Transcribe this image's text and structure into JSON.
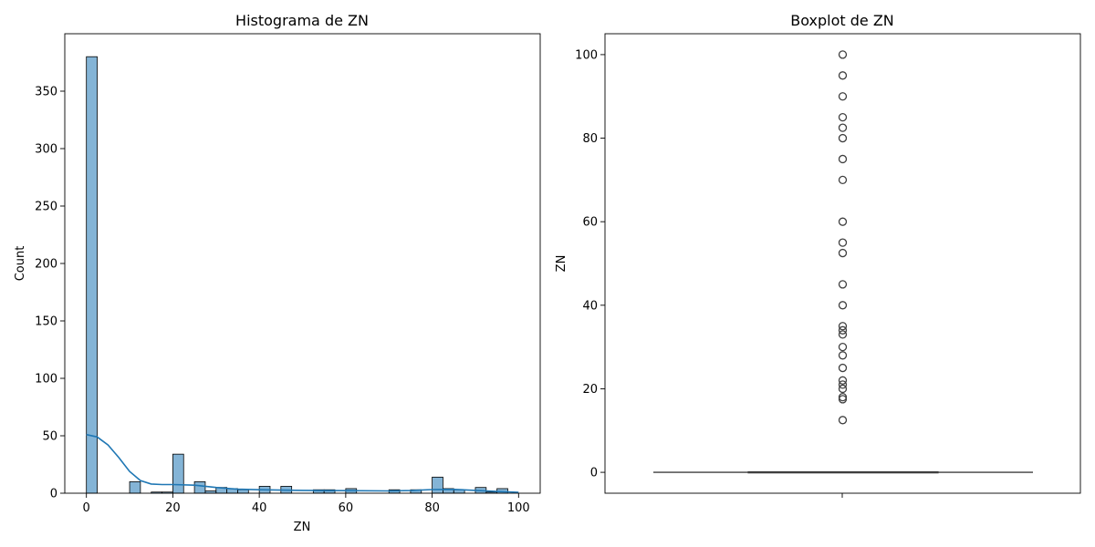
{
  "chart_data": [
    {
      "type": "histogram",
      "title": "Histograma de ZN",
      "xlabel": "ZN",
      "ylabel": "Count",
      "xlim": [
        -5,
        105
      ],
      "ylim": [
        0,
        400
      ],
      "xticks": [
        0,
        20,
        40,
        60,
        80,
        100
      ],
      "yticks": [
        0,
        50,
        100,
        150,
        200,
        250,
        300,
        350
      ],
      "bar_color": "#1f77b4",
      "bin_width": 2.5,
      "bins": [
        {
          "x": 0,
          "count": 380
        },
        {
          "x": 10,
          "count": 10
        },
        {
          "x": 15,
          "count": 1
        },
        {
          "x": 17.5,
          "count": 1
        },
        {
          "x": 20,
          "count": 34
        },
        {
          "x": 25,
          "count": 10
        },
        {
          "x": 27.5,
          "count": 2
        },
        {
          "x": 30,
          "count": 5
        },
        {
          "x": 32.5,
          "count": 4
        },
        {
          "x": 35,
          "count": 3
        },
        {
          "x": 40,
          "count": 6
        },
        {
          "x": 45,
          "count": 6
        },
        {
          "x": 52.5,
          "count": 3
        },
        {
          "x": 55,
          "count": 3
        },
        {
          "x": 60,
          "count": 4
        },
        {
          "x": 70,
          "count": 3
        },
        {
          "x": 75,
          "count": 3
        },
        {
          "x": 80,
          "count": 14
        },
        {
          "x": 82.5,
          "count": 4
        },
        {
          "x": 85,
          "count": 3
        },
        {
          "x": 90,
          "count": 5
        },
        {
          "x": 92.5,
          "count": 1
        },
        {
          "x": 95,
          "count": 4
        }
      ],
      "kde": [
        [
          0,
          51
        ],
        [
          2.5,
          49
        ],
        [
          5,
          42
        ],
        [
          7.5,
          31
        ],
        [
          10,
          19
        ],
        [
          12.5,
          11
        ],
        [
          15,
          8
        ],
        [
          17.5,
          7.5
        ],
        [
          20,
          7.5
        ],
        [
          25,
          7
        ],
        [
          30,
          5
        ],
        [
          35,
          3.5
        ],
        [
          40,
          3
        ],
        [
          50,
          2.5
        ],
        [
          60,
          2.2
        ],
        [
          70,
          2
        ],
        [
          75,
          2.3
        ],
        [
          80,
          3.2
        ],
        [
          85,
          3.3
        ],
        [
          90,
          2.5
        ],
        [
          95,
          1.5
        ],
        [
          100,
          0.8
        ]
      ]
    },
    {
      "type": "boxplot",
      "title": "Boxplot de ZN",
      "xlabel": "",
      "ylabel": "ZN",
      "ylim": [
        -5,
        105
      ],
      "yticks": [
        0,
        20,
        40,
        60,
        80,
        100
      ],
      "box": {
        "min": 0,
        "q1": 0,
        "median": 0,
        "q3": 0,
        "max": 0
      },
      "outliers": [
        12.5,
        17.5,
        18,
        20,
        21,
        22,
        25,
        28,
        30,
        33,
        34,
        35,
        40,
        45,
        52.5,
        55,
        60,
        70,
        75,
        80,
        82.5,
        85,
        90,
        95,
        100
      ]
    }
  ]
}
